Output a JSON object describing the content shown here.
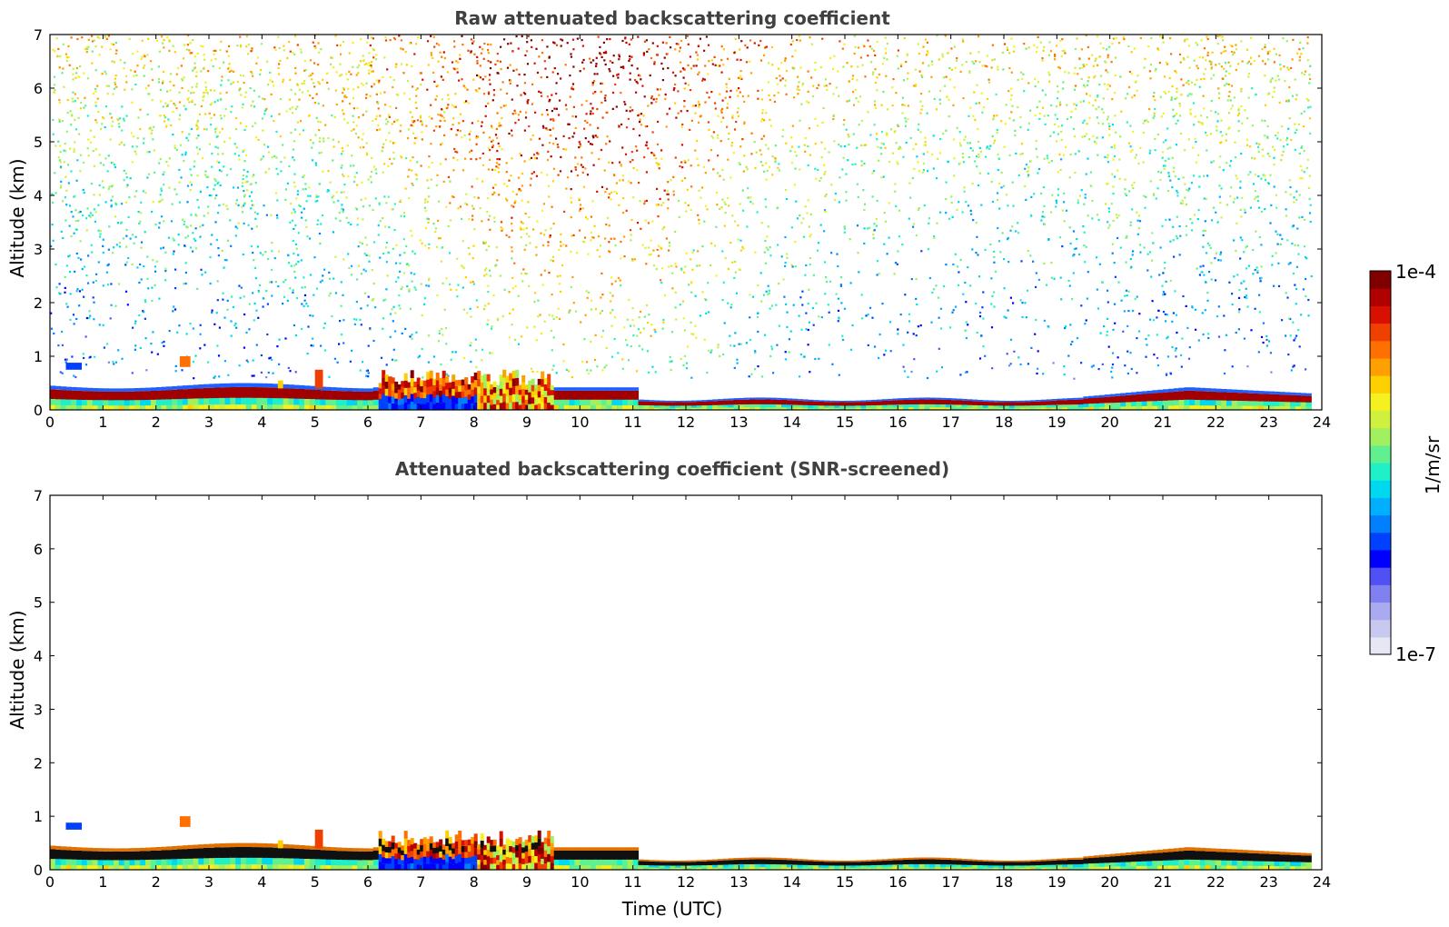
{
  "chart_data": [
    {
      "type": "heatmap",
      "title": "Raw attenuated backscattering coefficient",
      "xlabel": "",
      "ylabel": "Altitude (km)",
      "xlim": [
        0,
        24
      ],
      "ylim": [
        0,
        7
      ],
      "x_ticks": [
        0,
        1,
        2,
        3,
        4,
        5,
        6,
        7,
        8,
        9,
        10,
        11,
        12,
        13,
        14,
        15,
        16,
        17,
        18,
        19,
        20,
        21,
        22,
        23,
        24
      ],
      "y_ticks": [
        0,
        1,
        2,
        3,
        4,
        5,
        6,
        7
      ],
      "data_extent_time_utc": [
        0,
        23.8
      ],
      "features": [
        {
          "name": "boundary layer aerosol band",
          "time_range": [
            0,
            23.8
          ],
          "altitude_top_km": [
            0.5,
            0.15,
            0.45
          ],
          "value_level": "high"
        },
        {
          "name": "low cloud / aerosol layer",
          "time_range": [
            6.2,
            9.5
          ],
          "altitude_range_km": [
            0,
            0.75
          ],
          "value_level": "high"
        },
        {
          "name": "small feature",
          "time_range": [
            2.45,
            2.65
          ],
          "altitude_range_km": [
            0.8,
            1.0
          ]
        },
        {
          "name": "small feature",
          "time_range": [
            0.25,
            0.7
          ],
          "altitude_range_km": [
            0.75,
            0.9
          ]
        },
        {
          "name": "solar background noise maximum",
          "time_range": [
            7,
            13
          ],
          "altitude_range_km": [
            3,
            7
          ],
          "value_level": "mid-high"
        },
        {
          "name": "low-signal region",
          "time_range": [
            13,
            19.5
          ],
          "altitude_range_km": [
            0.5,
            3
          ]
        }
      ]
    },
    {
      "type": "heatmap",
      "title": "Attenuated backscattering coefficient (SNR-screened)",
      "xlabel": "Time (UTC)",
      "ylabel": "Altitude (km)",
      "xlim": [
        0,
        24
      ],
      "ylim": [
        0,
        7
      ],
      "x_ticks": [
        0,
        1,
        2,
        3,
        4,
        5,
        6,
        7,
        8,
        9,
        10,
        11,
        12,
        13,
        14,
        15,
        16,
        17,
        18,
        19,
        20,
        21,
        22,
        23,
        24
      ],
      "y_ticks": [
        0,
        1,
        2,
        3,
        4,
        5,
        6,
        7
      ],
      "data_extent_time_utc": [
        0,
        23.8
      ],
      "features": [
        {
          "name": "boundary layer aerosol band",
          "time_range": [
            0,
            23.8
          ],
          "altitude_top_km": [
            0.5,
            0.15,
            0.45
          ],
          "value_level": "high"
        },
        {
          "name": "low cloud / aerosol layer",
          "time_range": [
            6.2,
            9.5
          ],
          "altitude_range_km": [
            0,
            0.75
          ],
          "value_level": "high"
        },
        {
          "name": "small feature",
          "time_range": [
            2.45,
            2.65
          ],
          "altitude_range_km": [
            0.8,
            1.0
          ]
        },
        {
          "name": "small feature",
          "time_range": [
            0.3,
            0.6
          ],
          "altitude_range_km": [
            0.75,
            0.85
          ]
        }
      ]
    }
  ],
  "colorbar": {
    "label": "1/m/sr",
    "max_label": "1e-4",
    "min_label": "1e-7",
    "scale": "log",
    "range": [
      1e-07,
      0.0001
    ],
    "colors": [
      "#e6e6f5",
      "#c8c8f0",
      "#aaaaf0",
      "#8080f0",
      "#5050f5",
      "#0000ff",
      "#0040ff",
      "#0080ff",
      "#00b0ff",
      "#00d8f0",
      "#20f0c8",
      "#60f090",
      "#a0f060",
      "#d0f040",
      "#f5f020",
      "#ffd000",
      "#ffa000",
      "#ff7000",
      "#f04000",
      "#d81000",
      "#b00000",
      "#800000"
    ]
  }
}
